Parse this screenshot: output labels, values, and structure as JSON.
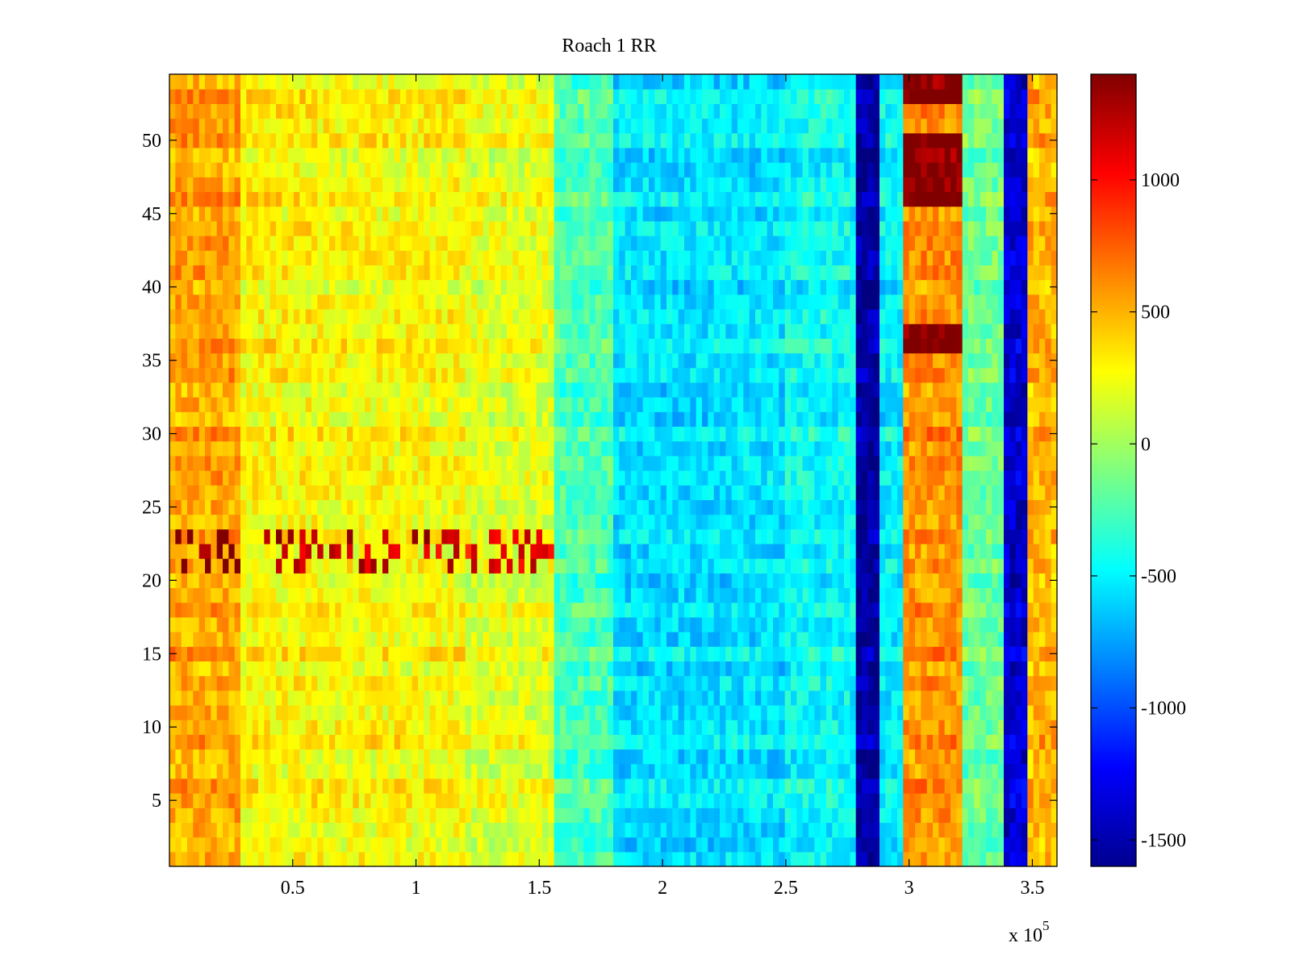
{
  "chart_data": {
    "type": "heatmap",
    "title": "Roach 1 RR",
    "xlabel": "",
    "ylabel": "",
    "x_exponent_label": "x 10",
    "x_exponent_power": "5",
    "xlim": [
      0,
      3.6
    ],
    "ylim": [
      0.5,
      54.5
    ],
    "x_ticks": [
      0.5,
      1,
      1.5,
      2,
      2.5,
      3,
      3.5
    ],
    "x_tick_labels": [
      "0.5",
      "1",
      "1.5",
      "2",
      "2.5",
      "3",
      "3.5"
    ],
    "y_ticks": [
      5,
      10,
      15,
      20,
      25,
      30,
      35,
      40,
      45,
      50
    ],
    "y_tick_labels": [
      "5",
      "10",
      "15",
      "20",
      "25",
      "30",
      "35",
      "40",
      "45",
      "50"
    ],
    "rows": 54,
    "colormap": "jet",
    "clim": [
      -1600,
      1400
    ],
    "colorbar": {
      "ticks": [
        1000,
        500,
        0,
        -500,
        -1000,
        -1500
      ],
      "tick_labels": [
        "1000",
        "500",
        "0",
        "-500",
        "-1000",
        "-1500"
      ]
    },
    "column_bands": [
      {
        "x": [
          0.0,
          0.3
        ],
        "value": 550
      },
      {
        "x": [
          0.3,
          0.6
        ],
        "value": 300
      },
      {
        "x": [
          0.6,
          1.2
        ],
        "value": 280
      },
      {
        "x": [
          1.2,
          1.55
        ],
        "value": 200
      },
      {
        "x": [
          1.55,
          1.8
        ],
        "value": -250
      },
      {
        "x": [
          1.8,
          2.5
        ],
        "value": -550
      },
      {
        "x": [
          2.5,
          2.78
        ],
        "value": -450
      },
      {
        "x": [
          2.78,
          2.88
        ],
        "value": -1500
      },
      {
        "x": [
          2.88,
          2.98
        ],
        "value": -500
      },
      {
        "x": [
          2.98,
          3.22
        ],
        "value": 600
      },
      {
        "x": [
          3.22,
          3.38
        ],
        "value": -150
      },
      {
        "x": [
          3.38,
          3.48
        ],
        "value": -1350
      },
      {
        "x": [
          3.48,
          3.6
        ],
        "value": 500
      }
    ],
    "row_bands": [
      {
        "rows": [
          46,
          50
        ],
        "x": [
          2.98,
          3.22
        ],
        "value": 1400
      },
      {
        "rows": [
          53,
          54
        ],
        "x": [
          2.98,
          3.22
        ],
        "value": 1400
      },
      {
        "rows": [
          36,
          37
        ],
        "x": [
          2.98,
          3.22
        ],
        "value": 1400
      },
      {
        "rows": [
          21,
          23
        ],
        "x": [
          0.0,
          1.55
        ],
        "value": 900
      }
    ],
    "colors": {
      "axes_frame": "#000000",
      "background": "#ffffff"
    }
  }
}
